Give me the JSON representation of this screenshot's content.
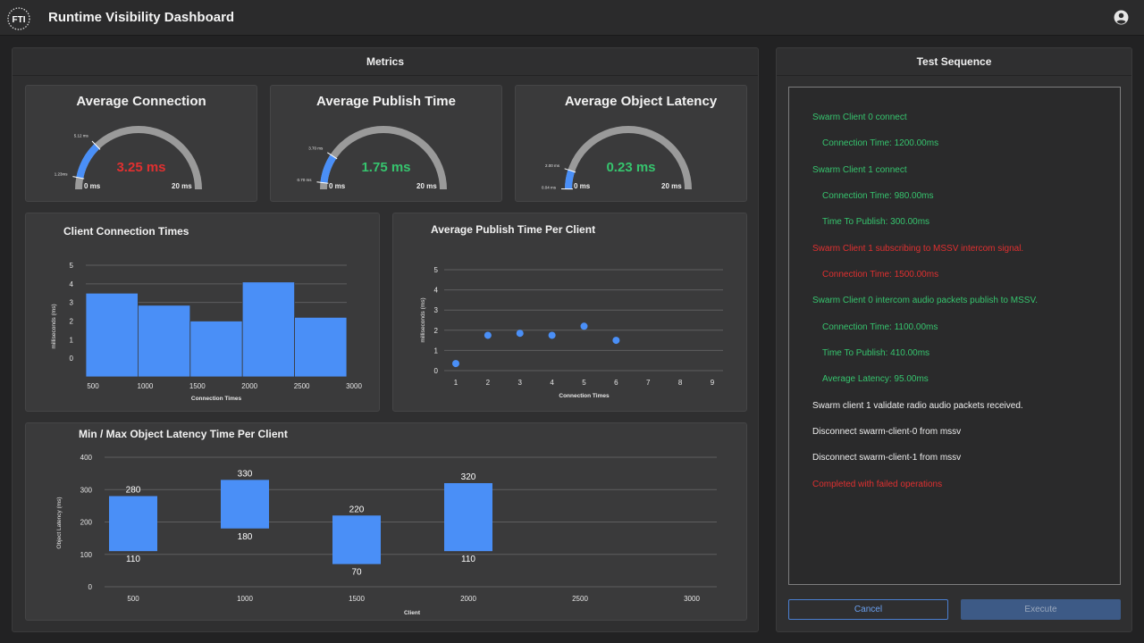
{
  "app": {
    "logo_text": "FTI",
    "title": "Runtime Visibility Dashboard"
  },
  "metrics": {
    "title": "Metrics",
    "gauges": [
      {
        "title": "Average Connection",
        "value": 3.25,
        "display": "3.25 ms",
        "min_label": "0 ms",
        "max_label": "20 ms",
        "max": 20,
        "band_start": 1.23,
        "band_end": 5.12,
        "band_start_label": "1.23ms",
        "band_end_label": "5.12 ms",
        "value_color": "#e03030"
      },
      {
        "title": "Average Publish Time",
        "value": 1.75,
        "display": "1.75 ms",
        "min_label": "0 ms",
        "max_label": "20 ms",
        "max": 20,
        "band_start": 0.7,
        "band_end": 3.7,
        "band_start_label": "0.70 ms",
        "band_end_label": "3.70 ms",
        "value_color": "#36c46e"
      },
      {
        "title": "Average Object Latency",
        "value": 0.23,
        "display": "0.23 ms",
        "min_label": "0 ms",
        "max_label": "20 ms",
        "max": 20,
        "band_start": 0.04,
        "band_end": 2.0,
        "band_start_label": "0.04 ms",
        "band_end_label": "2.00 ms",
        "value_color": "#36c46e"
      }
    ]
  },
  "chart_data": [
    {
      "type": "bar",
      "title": "Client Connection Times",
      "xlabel": "Connection Times",
      "ylabel": "milliseconds (ms)",
      "bins": [
        [
          500,
          1000
        ],
        [
          1000,
          1500
        ],
        [
          1500,
          2000
        ],
        [
          2000,
          2500
        ],
        [
          2500,
          3000
        ]
      ],
      "values": [
        3.5,
        2.85,
        2.0,
        4.1,
        2.2
      ],
      "x_ticks": [
        "500",
        "1000",
        "1500",
        "2000",
        "2500",
        "3000"
      ],
      "y_ticks": [
        "0",
        "1",
        "2",
        "3",
        "4",
        "5"
      ],
      "xlim": [
        500,
        3000
      ],
      "ylim": [
        -1,
        5
      ]
    },
    {
      "type": "scatter",
      "title": "Average Publish Time Per Client",
      "xlabel": "Connection Times",
      "ylabel": "milliseconds (ms)",
      "x": [
        1,
        2,
        3,
        4,
        5,
        6
      ],
      "y": [
        0.35,
        1.75,
        1.85,
        1.75,
        2.2,
        1.5
      ],
      "x_ticks": [
        "1",
        "2",
        "3",
        "4",
        "5",
        "6",
        "7",
        "8",
        "9"
      ],
      "y_ticks": [
        "0",
        "1",
        "2",
        "3",
        "4",
        "5"
      ],
      "xlim": [
        1,
        9
      ],
      "ylim": [
        0,
        5
      ]
    },
    {
      "type": "bar",
      "title": "Min / Max Object Latency Time Per Client",
      "xlabel": "Client",
      "ylabel": "Object Latency (ms)",
      "x": [
        500,
        1000,
        1500,
        2000
      ],
      "min": [
        110,
        180,
        70,
        110
      ],
      "max": [
        280,
        330,
        220,
        320
      ],
      "min_labels": [
        "110",
        "180",
        "70",
        "110"
      ],
      "max_labels": [
        "280",
        "330",
        "220",
        "320"
      ],
      "x_ticks": [
        "500",
        "1000",
        "1500",
        "2000",
        "2500",
        "3000"
      ],
      "y_ticks": [
        "0",
        "100",
        "200",
        "300",
        "400"
      ],
      "xlim": [
        500,
        3000
      ],
      "ylim": [
        0,
        400
      ]
    }
  ],
  "test_sequence": {
    "title": "Test Sequence",
    "lines": [
      {
        "text": "Swarm Client 0 connect",
        "status": "ok",
        "indent": false
      },
      {
        "text": "Connection Time: 1200.00ms",
        "status": "ok",
        "indent": true
      },
      {
        "text": "Swarm Client 1 connect",
        "status": "ok",
        "indent": false
      },
      {
        "text": "Connection Time: 980.00ms",
        "status": "ok",
        "indent": true
      },
      {
        "text": "Time To Publish: 300.00ms",
        "status": "ok",
        "indent": true
      },
      {
        "text": "Swarm Client 1 subscribing to MSSV intercom signal.",
        "status": "err",
        "indent": false
      },
      {
        "text": "Connection Time: 1500.00ms",
        "status": "err",
        "indent": true
      },
      {
        "text": "Swarm Client 0 intercom audio packets publish to MSSV.",
        "status": "ok",
        "indent": false
      },
      {
        "text": "Connection Time: 1100.00ms",
        "status": "ok",
        "indent": true
      },
      {
        "text": "Time To Publish: 410.00ms",
        "status": "ok",
        "indent": true
      },
      {
        "text": "Average Latency: 95.00ms",
        "status": "ok",
        "indent": true
      },
      {
        "text": "Swarm client 1 validate radio audio packets received.",
        "status": "info",
        "indent": false
      },
      {
        "text": "Disconnect swarm-client-0 from mssv",
        "status": "info",
        "indent": false
      },
      {
        "text": "Disconnect swarm-client-1 from mssv",
        "status": "info",
        "indent": false
      },
      {
        "text": "Completed with failed operations",
        "status": "err",
        "indent": false
      }
    ],
    "cancel_label": "Cancel",
    "execute_label": "Execute"
  },
  "colors": {
    "accent": "#4a8ff7",
    "ok": "#36c46e",
    "error": "#e03030",
    "track": "#9a9a9a"
  }
}
